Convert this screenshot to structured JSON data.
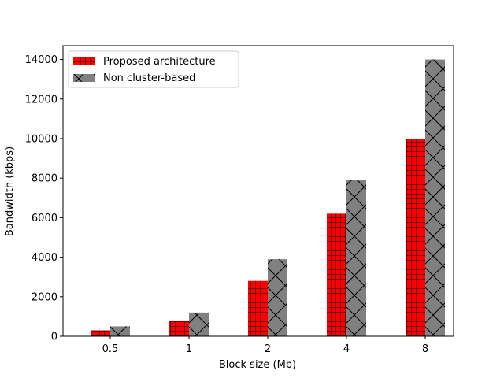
{
  "chart_data": {
    "type": "bar",
    "title": "",
    "xlabel": "Block size (Mb)",
    "ylabel": "Bandwidth (kbps)",
    "categories": [
      "0.5",
      "1",
      "2",
      "4",
      "8"
    ],
    "ylim": [
      0,
      14700
    ],
    "yticks": [
      0,
      2000,
      4000,
      6000,
      8000,
      10000,
      12000,
      14000
    ],
    "grid": false,
    "legend_position": "upper-left",
    "series": [
      {
        "name": "Proposed architecture",
        "values": [
          300,
          800,
          2800,
          6200,
          10000
        ],
        "color": "#ff0000",
        "hatch": "grid"
      },
      {
        "name": " Non cluster-based",
        "values": [
          500,
          1200,
          3900,
          7900,
          14000
        ],
        "color": "#808080",
        "hatch": "cross-diagonal"
      }
    ]
  }
}
